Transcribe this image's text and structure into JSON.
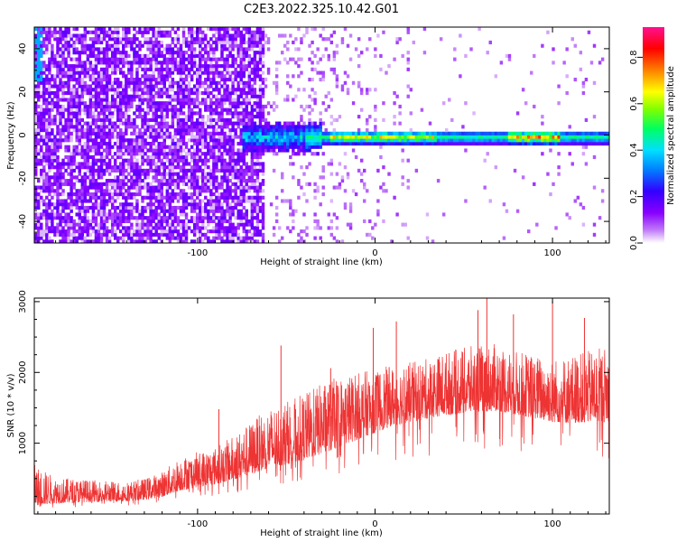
{
  "figure": {
    "title": "C2E3.2022.325.10.42.G01"
  },
  "chart_data": [
    {
      "type": "heatmap",
      "xlabel": "Height of straight line (km)",
      "ylabel": "Frequency (Hz)",
      "xlim": [
        -192,
        132
      ],
      "ylim": [
        -50,
        50
      ],
      "x_ticks": [
        -100,
        0,
        100
      ],
      "y_ticks": [
        -40,
        -20,
        0,
        20,
        40
      ],
      "colorbar": {
        "label": "Normalized spectral amplitude",
        "range": [
          0.0,
          0.93
        ],
        "ticks": [
          0.0,
          0.2,
          0.4,
          0.6,
          0.8
        ],
        "colormap": [
          "#ffffff",
          "#c07af8",
          "#8800ff",
          "#3300ff",
          "#0080ff",
          "#00e0ff",
          "#00ff60",
          "#80ff00",
          "#ffff00",
          "#ff8000",
          "#ff0000",
          "#ff1090"
        ]
      },
      "features": {
        "tone_frequency_hz": -1,
        "tone_visible_from_km": -75,
        "tone_peak_km": [
          -5,
          28
        ],
        "noise_region_km": [
          -192,
          -70
        ],
        "sparse_region_km": [
          -70,
          132
        ]
      }
    },
    {
      "type": "line",
      "xlabel": "Height of straight line (km)",
      "ylabel": "SNR (10 * v/v)",
      "xlim": [
        -192,
        132
      ],
      "ylim": [
        0,
        3050
      ],
      "x_ticks": [
        -100,
        0,
        100
      ],
      "y_ticks": [
        1000,
        2000,
        3000
      ],
      "series": [
        {
          "color": "#ee3333",
          "envelope": [
            {
              "x": -192,
              "base": 120,
              "peak": 700
            },
            {
              "x": -180,
              "base": 150,
              "peak": 520
            },
            {
              "x": -160,
              "base": 170,
              "peak": 480
            },
            {
              "x": -140,
              "base": 180,
              "peak": 460
            },
            {
              "x": -130,
              "base": 200,
              "peak": 500
            },
            {
              "x": -120,
              "base": 240,
              "peak": 600
            },
            {
              "x": -110,
              "base": 330,
              "peak": 800
            },
            {
              "x": -100,
              "base": 380,
              "peak": 880
            },
            {
              "x": -90,
              "base": 420,
              "peak": 950
            },
            {
              "x": -80,
              "base": 480,
              "peak": 1100
            },
            {
              "x": -70,
              "base": 560,
              "peak": 1300
            },
            {
              "x": -60,
              "base": 650,
              "peak": 1500
            },
            {
              "x": -50,
              "base": 700,
              "peak": 1600
            },
            {
              "x": -40,
              "base": 760,
              "peak": 1700
            },
            {
              "x": -30,
              "base": 850,
              "peak": 1850
            },
            {
              "x": -20,
              "base": 950,
              "peak": 1950
            },
            {
              "x": -10,
              "base": 1050,
              "peak": 2000
            },
            {
              "x": 0,
              "base": 1150,
              "peak": 2050
            },
            {
              "x": 10,
              "base": 1250,
              "peak": 2100
            },
            {
              "x": 20,
              "base": 1300,
              "peak": 2150
            },
            {
              "x": 30,
              "base": 1350,
              "peak": 2200
            },
            {
              "x": 40,
              "base": 1400,
              "peak": 2300
            },
            {
              "x": 50,
              "base": 1420,
              "peak": 2350
            },
            {
              "x": 60,
              "base": 1450,
              "peak": 2400
            },
            {
              "x": 70,
              "base": 1450,
              "peak": 2400
            },
            {
              "x": 80,
              "base": 1400,
              "peak": 2300
            },
            {
              "x": 90,
              "base": 1350,
              "peak": 2250
            },
            {
              "x": 100,
              "base": 1300,
              "peak": 2200
            },
            {
              "x": 110,
              "base": 1280,
              "peak": 2250
            },
            {
              "x": 120,
              "base": 1300,
              "peak": 2300
            },
            {
              "x": 132,
              "base": 1300,
              "peak": 2400
            }
          ],
          "notable_spikes": [
            {
              "x": -88,
              "y": 1480
            },
            {
              "x": -53,
              "y": 2380
            },
            {
              "x": -25,
              "y": 2060
            },
            {
              "x": -1,
              "y": 2630
            },
            {
              "x": 12,
              "y": 2720
            },
            {
              "x": 58,
              "y": 2880
            },
            {
              "x": 63,
              "y": 3050
            },
            {
              "x": 78,
              "y": 2820
            },
            {
              "x": 100,
              "y": 3010
            },
            {
              "x": 118,
              "y": 2770
            }
          ]
        }
      ]
    }
  ]
}
